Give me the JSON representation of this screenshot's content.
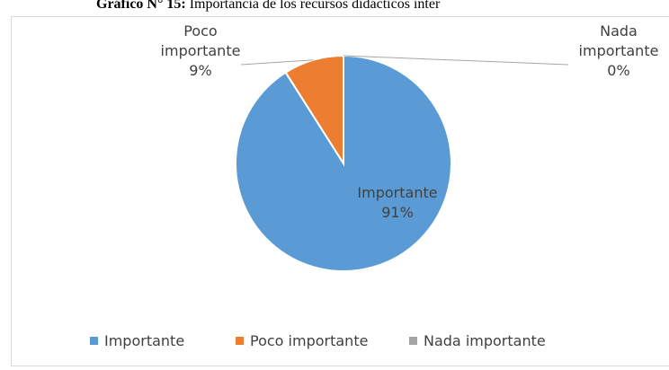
{
  "chart_data": {
    "type": "pie",
    "title_prefix": "Gráfico N° 15:",
    "title": "Importancia de  los recursos didácticos inter",
    "categories": [
      "Importante",
      "Poco importante",
      "Nada importante"
    ],
    "values": [
      91,
      9,
      0
    ],
    "value_labels": [
      "91%",
      "9%",
      "0%"
    ],
    "colors": [
      "#5b9bd5",
      "#ed7d31",
      "#a5a5a5"
    ],
    "legend": "bottom"
  }
}
